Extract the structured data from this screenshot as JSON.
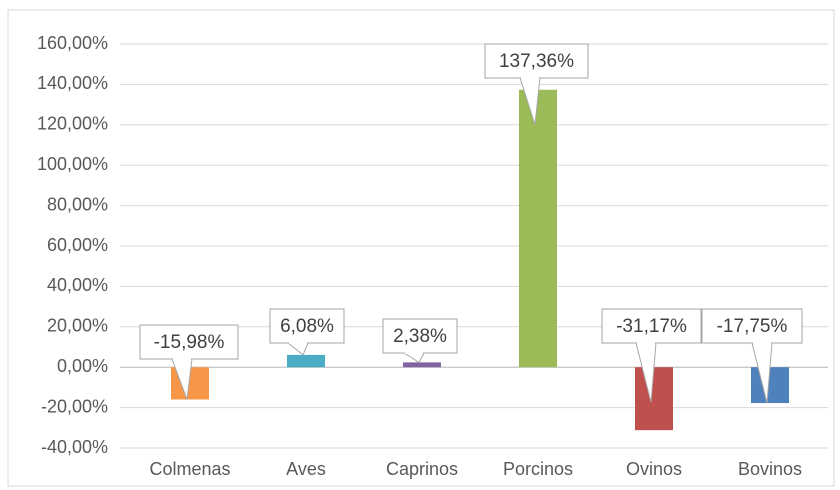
{
  "chart_data": {
    "type": "bar",
    "categories": [
      "Colmenas",
      "Aves",
      "Caprinos",
      "Porcinos",
      "Ovinos",
      "Bovinos"
    ],
    "values": [
      -15.98,
      6.08,
      2.38,
      137.36,
      -31.17,
      -17.75
    ],
    "value_labels": [
      "-15,98%",
      "6,08%",
      "2,38%",
      "137,36%",
      "-31,17%",
      "-17,75%"
    ],
    "colors": [
      "#f79646",
      "#4bacc6",
      "#8064a2",
      "#9bbb59",
      "#c0504d",
      "#4f81bd"
    ],
    "ylim": [
      -40,
      160
    ],
    "yticks": [
      {
        "value": -40,
        "label": "-40,00%"
      },
      {
        "value": -20,
        "label": "-20,00%"
      },
      {
        "value": 0,
        "label": "0,00%"
      },
      {
        "value": 20,
        "label": "20,00%"
      },
      {
        "value": 40,
        "label": "40,00%"
      },
      {
        "value": 60,
        "label": "60,00%"
      },
      {
        "value": 80,
        "label": "80,00%"
      },
      {
        "value": 100,
        "label": "100,00%"
      },
      {
        "value": 120,
        "label": "120,00%"
      },
      {
        "value": 140,
        "label": "140,00%"
      },
      {
        "value": 160,
        "label": "160,00%"
      }
    ],
    "grid": true
  }
}
